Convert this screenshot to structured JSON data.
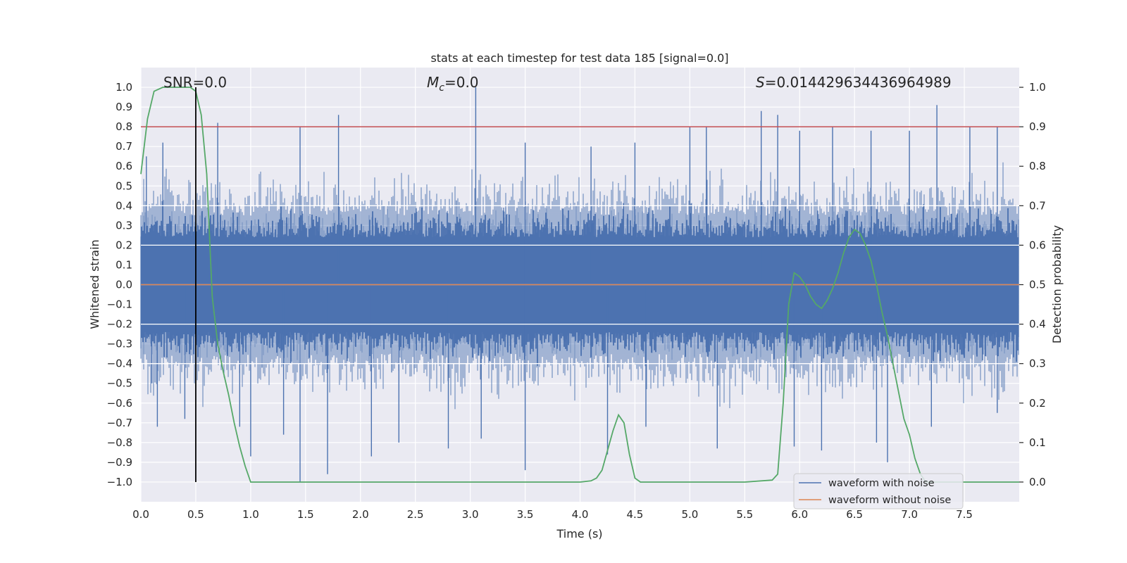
{
  "chart_data": {
    "type": "line",
    "title": "stats at each timestep for test data 185 [signal=0.0]",
    "xlabel": "Time (s)",
    "ylabel": "Whitened strain",
    "y2label": "Detection probability",
    "xlim": [
      0.0,
      8.0
    ],
    "ylim": [
      -1.1,
      1.1
    ],
    "y2lim": [
      -0.05,
      1.05
    ],
    "x_ticks": [
      "0.0",
      "0.5",
      "1.0",
      "1.5",
      "2.0",
      "2.5",
      "3.0",
      "3.5",
      "4.0",
      "4.5",
      "5.0",
      "5.5",
      "6.0",
      "6.5",
      "7.0",
      "7.5"
    ],
    "y_ticks": [
      "1.0",
      "0.9",
      "0.8",
      "0.7",
      "0.6",
      "0.5",
      "0.4",
      "0.3",
      "0.2",
      "0.1",
      "0.0",
      "−0.1",
      "−0.2",
      "−0.3",
      "−0.4",
      "−0.5",
      "−0.6",
      "−0.7",
      "−0.8",
      "−0.9",
      "−1.0"
    ],
    "y2_ticks": [
      "1.0",
      "0.9",
      "0.8",
      "0.7",
      "0.6",
      "0.5",
      "0.4",
      "0.3",
      "0.2",
      "0.1",
      "0.0"
    ],
    "annotations": {
      "snr": "SNR=0.0",
      "mc_prefix": "M",
      "mc_sub": "c",
      "mc_value": "=0.0",
      "s_prefix": "S",
      "s_value": "=0.014429634436964989"
    },
    "threshold": {
      "y2": 0.9,
      "color": "#c44e52"
    },
    "marker_line": {
      "x": 0.5,
      "y_from": -1.0,
      "y_to": 1.0,
      "color": "#000000"
    },
    "series": [
      {
        "name": "waveform with noise",
        "axis": "left",
        "color": "#4c72b0",
        "note_envelope": "dense noise, core amplitude about ±0.4 with spikes",
        "spikes_high": [
          [
            0.05,
            0.65
          ],
          [
            0.2,
            0.72
          ],
          [
            0.7,
            0.82
          ],
          [
            1.45,
            0.8
          ],
          [
            1.8,
            0.86
          ],
          [
            3.05,
            1.0
          ],
          [
            3.5,
            0.72
          ],
          [
            4.1,
            0.7
          ],
          [
            4.5,
            0.72
          ],
          [
            5.0,
            0.8
          ],
          [
            5.15,
            0.8
          ],
          [
            5.65,
            0.88
          ],
          [
            5.8,
            0.86
          ],
          [
            6.0,
            0.78
          ],
          [
            6.3,
            0.8
          ],
          [
            6.65,
            0.78
          ],
          [
            7.0,
            0.78
          ],
          [
            7.25,
            0.91
          ],
          [
            7.55,
            0.8
          ],
          [
            7.8,
            0.8
          ]
        ],
        "spikes_low": [
          [
            0.1,
            -0.5
          ],
          [
            0.15,
            -0.72
          ],
          [
            0.4,
            -0.68
          ],
          [
            0.9,
            -0.72
          ],
          [
            1.0,
            -0.87
          ],
          [
            1.3,
            -0.76
          ],
          [
            1.45,
            -1.0
          ],
          [
            1.7,
            -0.96
          ],
          [
            2.1,
            -0.87
          ],
          [
            2.35,
            -0.8
          ],
          [
            2.8,
            -0.83
          ],
          [
            3.1,
            -0.78
          ],
          [
            3.5,
            -0.94
          ],
          [
            4.25,
            -0.86
          ],
          [
            4.6,
            -0.72
          ],
          [
            5.25,
            -0.83
          ],
          [
            5.95,
            -0.82
          ],
          [
            6.2,
            -0.84
          ],
          [
            6.7,
            -0.8
          ],
          [
            6.8,
            -0.9
          ],
          [
            7.2,
            -0.72
          ],
          [
            7.8,
            -0.65
          ]
        ]
      },
      {
        "name": "waveform without noise",
        "axis": "left",
        "color": "#dd8452",
        "x": [
          0.0,
          8.0
        ],
        "y": [
          0.0,
          0.0
        ]
      },
      {
        "axis": "right",
        "color": "#55a868",
        "x": [
          0.0,
          0.06,
          0.12,
          0.2,
          0.3,
          0.4,
          0.45,
          0.5,
          0.55,
          0.6,
          0.65,
          0.7,
          0.75,
          0.8,
          0.85,
          0.9,
          0.95,
          1.0,
          1.2,
          1.5,
          1.8,
          2.0,
          2.5,
          3.0,
          3.5,
          3.7,
          3.8,
          4.0,
          4.1,
          4.15,
          4.2,
          4.25,
          4.3,
          4.35,
          4.4,
          4.45,
          4.5,
          4.55,
          4.6,
          4.65,
          5.0,
          5.5,
          5.75,
          5.8,
          5.85,
          5.9,
          5.95,
          6.0,
          6.05,
          6.1,
          6.15,
          6.2,
          6.25,
          6.3,
          6.35,
          6.4,
          6.45,
          6.5,
          6.55,
          6.6,
          6.65,
          6.7,
          6.75,
          6.8,
          6.85,
          6.9,
          6.95,
          7.0,
          7.05,
          7.1,
          7.15,
          7.2,
          7.3,
          8.0
        ],
        "y": [
          0.78,
          0.92,
          0.99,
          1.0,
          1.0,
          1.0,
          1.0,
          0.99,
          0.93,
          0.78,
          0.47,
          0.35,
          0.28,
          0.22,
          0.15,
          0.09,
          0.04,
          0.0,
          0.0,
          0.0,
          0.0,
          0.0,
          0.0,
          0.0,
          0.0,
          0.0,
          0.0,
          0.0,
          0.003,
          0.01,
          0.03,
          0.08,
          0.13,
          0.17,
          0.15,
          0.07,
          0.01,
          0.0,
          0.0,
          0.0,
          0.0,
          0.0,
          0.005,
          0.02,
          0.2,
          0.45,
          0.53,
          0.52,
          0.5,
          0.47,
          0.45,
          0.44,
          0.46,
          0.49,
          0.53,
          0.58,
          0.62,
          0.64,
          0.63,
          0.6,
          0.56,
          0.5,
          0.43,
          0.37,
          0.3,
          0.23,
          0.16,
          0.12,
          0.06,
          0.02,
          0.0,
          0.0,
          0.0,
          0.0
        ]
      }
    ],
    "legend": {
      "position": "lower-right",
      "entries": [
        "waveform with noise",
        "waveform without noise"
      ]
    },
    "grid": true,
    "colors": {
      "plot_bg": "#eaeaf2",
      "grid": "#ffffff",
      "text": "#262626"
    }
  }
}
